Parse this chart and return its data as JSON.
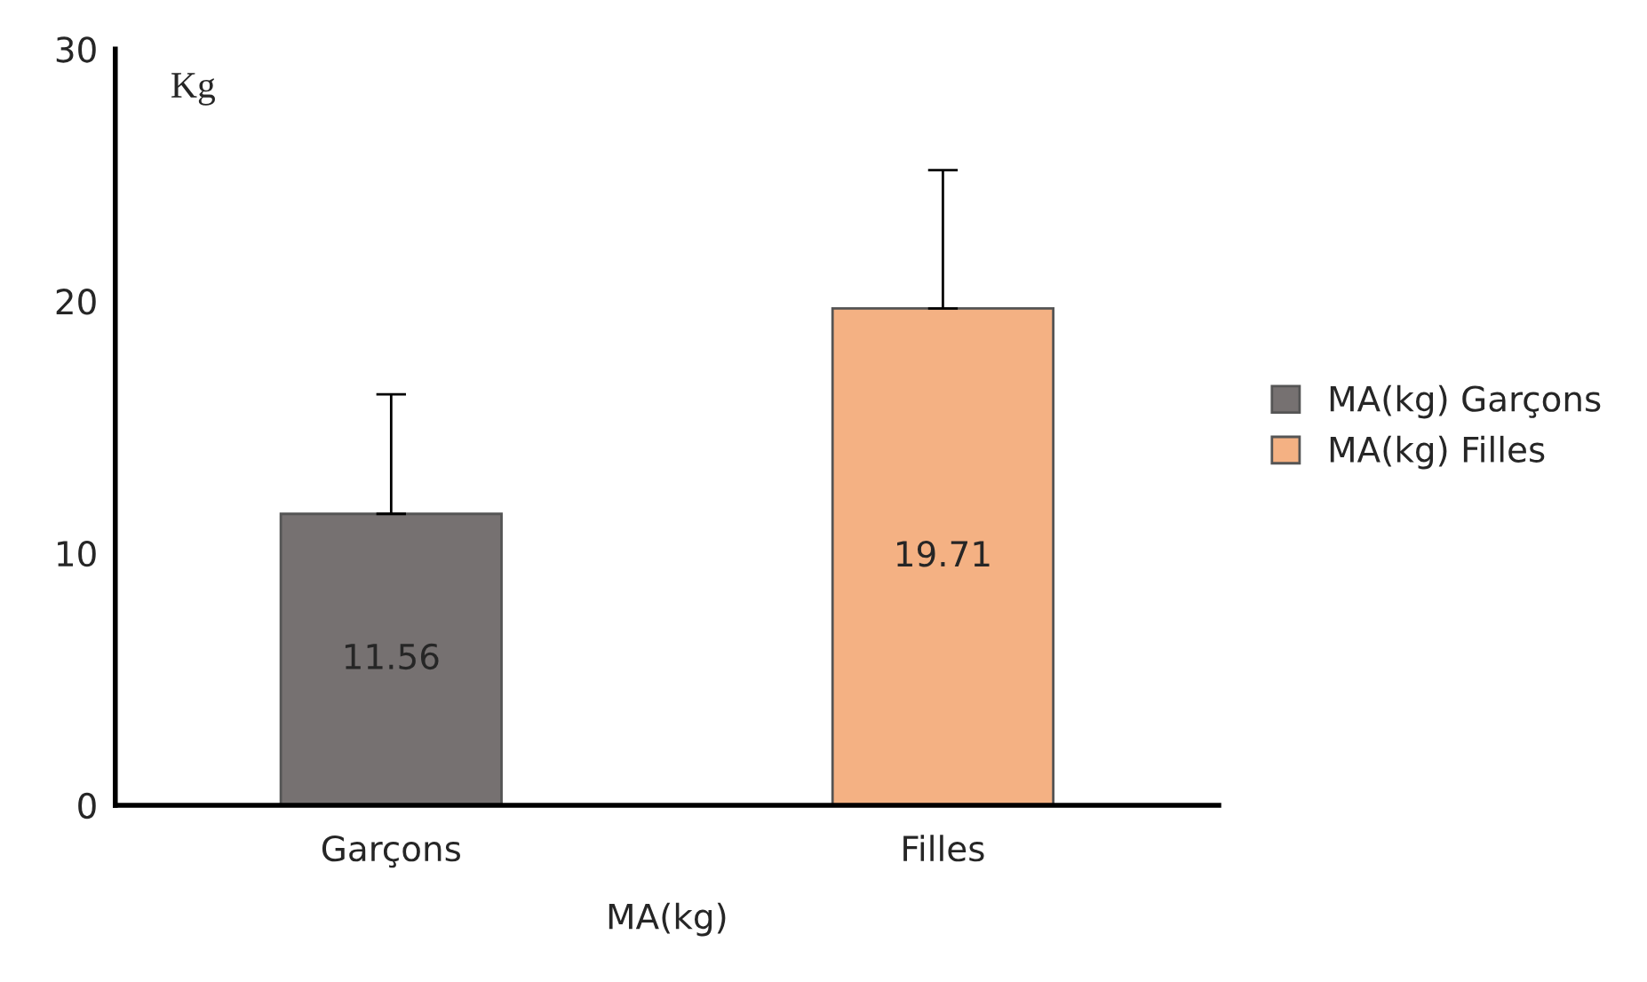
{
  "chart_data": {
    "type": "bar",
    "categories": [
      "Garçons",
      "Filles"
    ],
    "xlabel": "MA(kg)",
    "ylabel": "Kg",
    "series": [
      {
        "name": "MA(kg) Garçons",
        "color": "#767171",
        "values": [
          11.56,
          null
        ],
        "errors": [
          [
            11.56,
            16.3
          ],
          null
        ]
      },
      {
        "name": "MA(kg) Filles",
        "color": "#f4b183",
        "values": [
          null,
          19.71
        ],
        "errors": [
          null,
          [
            19.71,
            25.2
          ]
        ]
      }
    ],
    "ylim": [
      0,
      30
    ],
    "yticks": [
      0,
      10,
      20,
      30
    ],
    "grid": false,
    "legend": "right",
    "data_labels": true
  }
}
